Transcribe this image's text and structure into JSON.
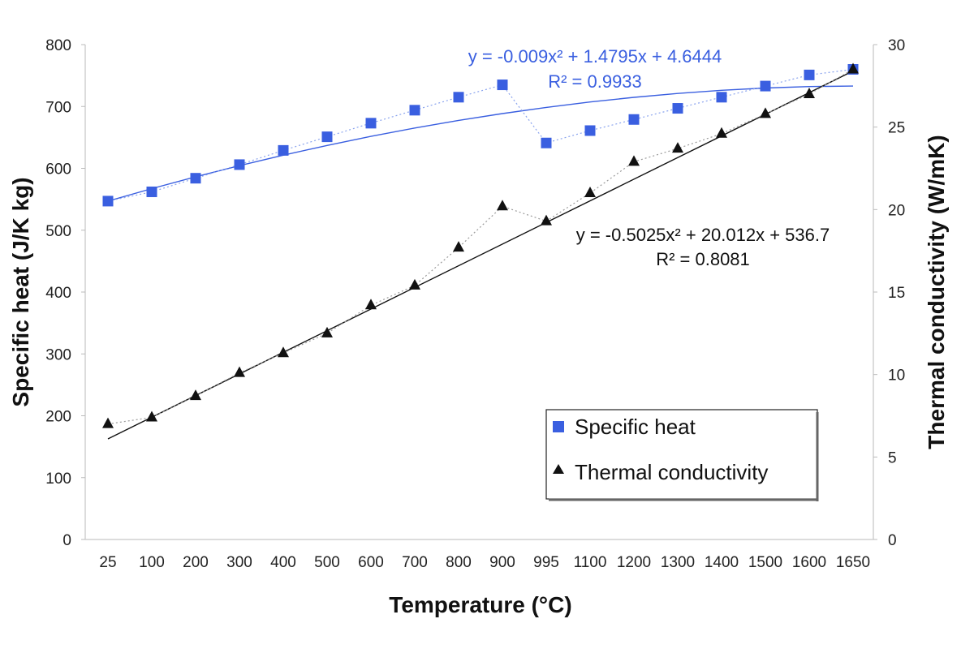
{
  "chart_data": {
    "type": "line",
    "categories": [
      "25",
      "100",
      "200",
      "300",
      "400",
      "500",
      "600",
      "700",
      "800",
      "900",
      "995",
      "1100",
      "1200",
      "1300",
      "1400",
      "1500",
      "1600",
      "1650"
    ],
    "xlabel": "Temperature (°C)",
    "ylabel_left": "Specific heat (J/K kg)",
    "ylabel_right": "Thermal conductivity (W/mK)",
    "ylim_left": [
      0,
      800
    ],
    "ylim_right": [
      0,
      30
    ],
    "yticks_left": [
      "0",
      "100",
      "200",
      "300",
      "400",
      "500",
      "600",
      "700",
      "800"
    ],
    "yticks_right": [
      "0",
      "5",
      "10",
      "15",
      "20",
      "25",
      "30"
    ],
    "grid": false,
    "legend_position": "bottom-right",
    "series": [
      {
        "name": "Specific heat",
        "axis": "left",
        "color": "#3a5fe0",
        "marker": "square",
        "values": [
          547,
          562,
          584,
          606,
          629,
          651,
          673,
          694,
          715,
          735,
          641,
          661,
          679,
          697,
          715,
          733,
          751,
          760
        ],
        "trendline": {
          "equation": "y = -0.009x² + 1.4795x + 4.6444",
          "r2": "R² = 0.9933",
          "coeffs": [
            -0.009,
            1.4795,
            4.6444
          ]
        }
      },
      {
        "name": "Thermal conductivity",
        "axis": "right",
        "color": "#111111",
        "marker": "triangle",
        "values": [
          7.0,
          7.4,
          8.7,
          10.1,
          11.3,
          12.5,
          14.2,
          15.4,
          17.7,
          20.2,
          19.3,
          21.0,
          22.9,
          23.7,
          24.6,
          25.8,
          27.0,
          28.5
        ],
        "trendline": {
          "equation": "y = -0.5025x² + 20.012x + 536.7",
          "r2": "R² = 0.8081",
          "start": 6.1,
          "end": 28.4
        }
      }
    ]
  }
}
